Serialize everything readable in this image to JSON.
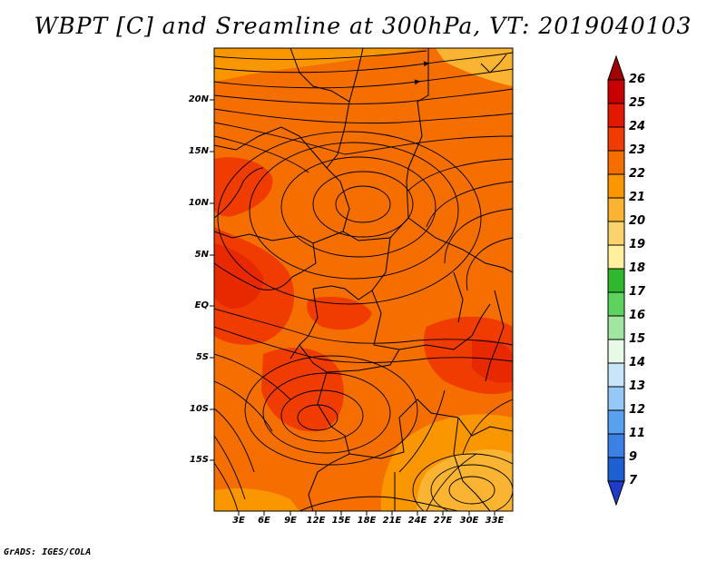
{
  "title": "WBPT [C] and Sreamline at 300hPa, VT: 2019040103",
  "credit": "GrADS: IGES/COLA",
  "lat_labels": [
    "20N",
    "15N",
    "10N",
    "5N",
    "EQ",
    "5S",
    "10S",
    "15S"
  ],
  "lon_labels": [
    "3E",
    "6E",
    "9E",
    "12E",
    "15E",
    "18E",
    "21E",
    "24E",
    "27E",
    "30E",
    "33E"
  ],
  "colorbar": {
    "labels": [
      "26",
      "25",
      "24",
      "23",
      "22",
      "21",
      "20",
      "19",
      "18",
      "17",
      "16",
      "15",
      "14",
      "13",
      "12",
      "11",
      "9",
      "7"
    ],
    "colors": [
      "#a00000",
      "#c80000",
      "#e11900",
      "#f03c00",
      "#f56e00",
      "#fa9600",
      "#fbb432",
      "#fcd26e",
      "#fff0a0",
      "#2fb82f",
      "#5ed25e",
      "#a0e6a0",
      "#e6fae6",
      "#c8e6fa",
      "#96c8f5",
      "#5aa0f0",
      "#3c80e6",
      "#1e60d2",
      "#1e3cc8"
    ]
  }
}
